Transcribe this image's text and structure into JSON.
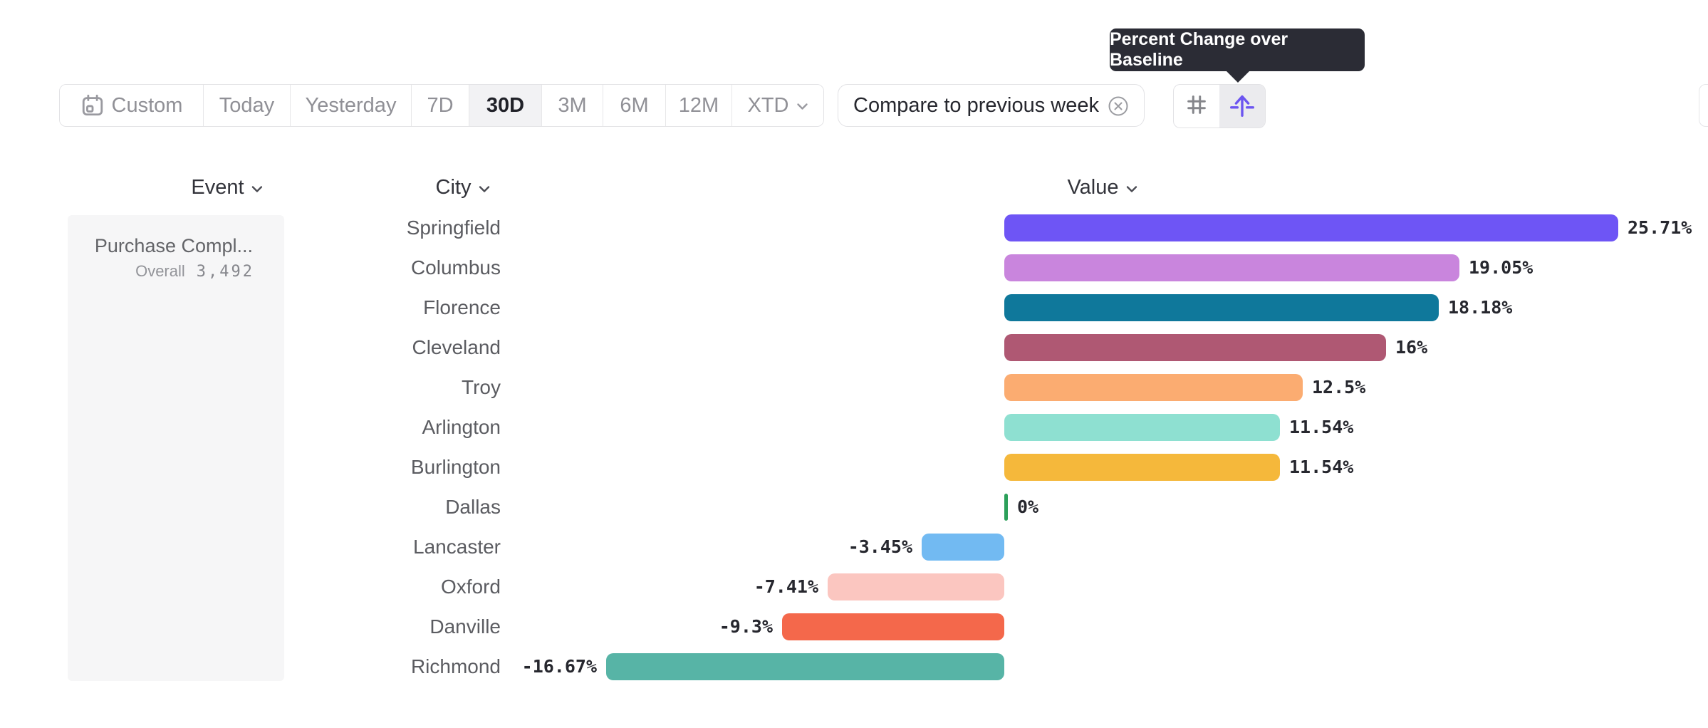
{
  "tooltip": {
    "text": "Percent Change over Baseline"
  },
  "toolbar": {
    "date_ranges": [
      {
        "label": "Custom",
        "selected": false,
        "icon": "calendar-icon"
      },
      {
        "label": "Today",
        "selected": false
      },
      {
        "label": "Yesterday",
        "selected": false
      },
      {
        "label": "7D",
        "selected": false
      },
      {
        "label": "30D",
        "selected": true
      },
      {
        "label": "3M",
        "selected": false
      },
      {
        "label": "6M",
        "selected": false
      },
      {
        "label": "12M",
        "selected": false
      },
      {
        "label": "XTD",
        "selected": false,
        "chevron": true
      }
    ],
    "compare_chip": {
      "label": "Compare to previous week",
      "remove_icon": "circled-x-icon"
    },
    "view_toggle": [
      {
        "name": "values-view",
        "icon": "hash-icon",
        "selected": false
      },
      {
        "name": "percent-baseline-view",
        "icon": "baseline-arrow-icon",
        "selected": true
      }
    ]
  },
  "columns": {
    "event": "Event",
    "city": "City",
    "value": "Value"
  },
  "event_panel": {
    "title": "Purchase Compl...",
    "overall_label": "Overall",
    "overall_value": "3,492"
  },
  "chart_data": {
    "type": "bar",
    "orientation": "horizontal",
    "categories": [
      "Springfield",
      "Columbus",
      "Florence",
      "Cleveland",
      "Troy",
      "Arlington",
      "Burlington",
      "Dallas",
      "Lancaster",
      "Oxford",
      "Danville",
      "Richmond"
    ],
    "values": [
      25.71,
      19.05,
      18.18,
      16,
      12.5,
      11.54,
      11.54,
      0,
      -3.45,
      -7.41,
      -9.3,
      -16.67
    ],
    "labels": [
      "25.71%",
      "19.05%",
      "18.18%",
      "16%",
      "12.5%",
      "11.54%",
      "11.54%",
      "0%",
      "-3.45%",
      "-7.41%",
      "-9.3%",
      "-16.67%"
    ],
    "colors": [
      "#6e55f5",
      "#c985dd",
      "#0f789b",
      "#af5873",
      "#fbac71",
      "#8ee0d1",
      "#f5b83b",
      "#2ca05a",
      "#72baf2",
      "#fbc6c0",
      "#f4684b",
      "#57b4a6"
    ],
    "baseline": 0,
    "xlim": [
      -16.67,
      25.71
    ],
    "grid": false,
    "legend": false
  },
  "theme": {
    "accent_purple": "#6c55f0",
    "tooltip_bg": "#2b2c35",
    "selected_bg": "#f2f2f4",
    "border": "#e2e2e5",
    "panel_bg": "#f6f6f7"
  }
}
